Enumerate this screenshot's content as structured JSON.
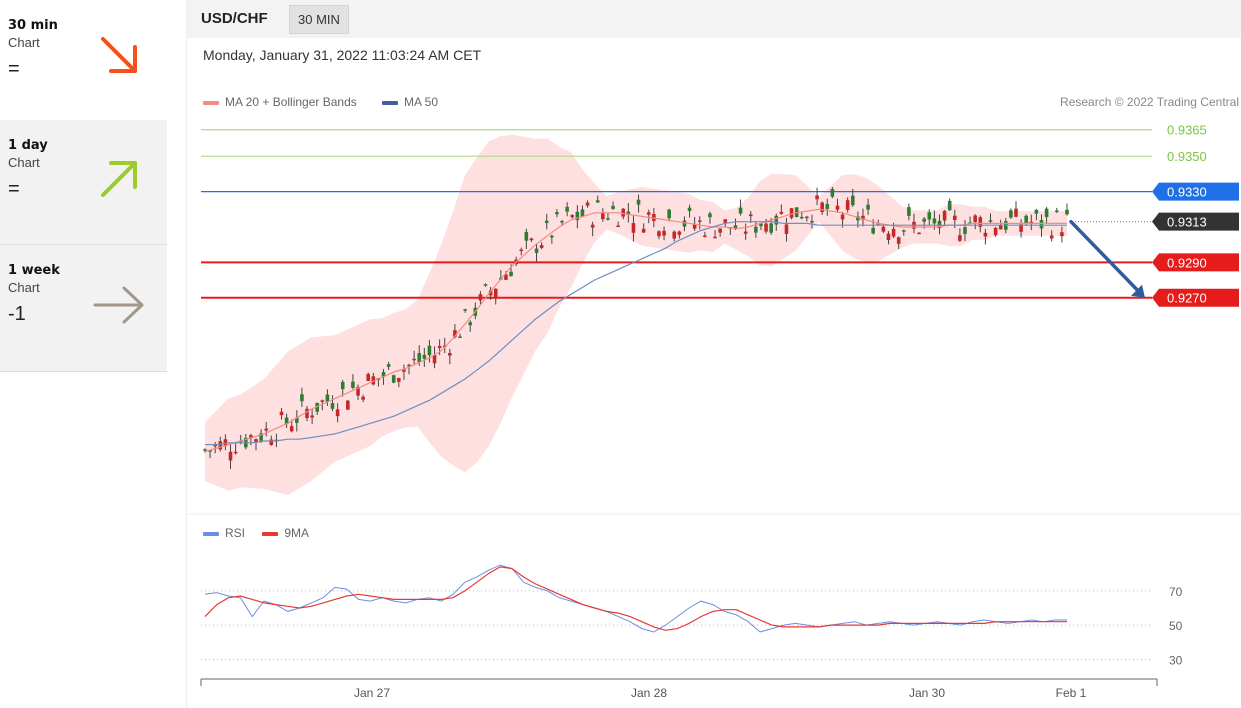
{
  "sidebar": {
    "items": [
      {
        "label": "30 min",
        "sub": "Chart",
        "value": "=",
        "icon": "arrow-down-right-icon",
        "color": "#f4511e"
      },
      {
        "label": "1 day",
        "sub": "Chart",
        "value": "=",
        "icon": "arrow-up-right-icon",
        "color": "#9ccc2a"
      },
      {
        "label": "1 week",
        "sub": "Chart",
        "value": "-1",
        "icon": "arrow-right-icon",
        "color": "#a1978b"
      }
    ]
  },
  "header": {
    "symbol": "USD/CHF",
    "interval": "30 MIN"
  },
  "datetime": "Monday, January 31, 2022 11:03:24 AM CET",
  "legend": {
    "ma20": "MA 20 + Bollinger Bands",
    "ma50": "MA 50",
    "ma20_color": "#f28b82",
    "ma50_color": "#3f5f9e"
  },
  "credit": "Research © 2022 Trading Central",
  "rsi_legend": {
    "rsi": "RSI",
    "ma9": "9MA",
    "rsi_color": "#6b8fe0",
    "ma9_color": "#e53935"
  },
  "chart_data": {
    "type": "line",
    "x_ticks": [
      "Jan 27",
      "Jan 28",
      "Jan 30",
      "Feb 1"
    ],
    "price_levels": [
      {
        "label": "0.9365",
        "value": 0.9365,
        "kind": "target",
        "color": "#7cc544"
      },
      {
        "label": "0.9350",
        "value": 0.935,
        "kind": "target",
        "color": "#7cc544"
      },
      {
        "label": "0.9330",
        "value": 0.933,
        "kind": "resistance",
        "color": "#1f6fe6"
      },
      {
        "label": "0.9313",
        "value": 0.9313,
        "kind": "last",
        "color": "#333333"
      },
      {
        "label": "0.9290",
        "value": 0.929,
        "kind": "support",
        "color": "#e61b1b"
      },
      {
        "label": "0.9270",
        "value": 0.927,
        "kind": "support",
        "color": "#e61b1b"
      }
    ],
    "series": [
      {
        "name": "MA 20 + Bollinger Bands",
        "values": [
          0.9183,
          0.9185,
          0.9187,
          0.9189,
          0.9191,
          0.9193,
          0.9196,
          0.9199,
          0.9203,
          0.9207,
          0.921,
          0.9213,
          0.9216,
          0.9219,
          0.9222,
          0.9225,
          0.9228,
          0.923,
          0.9233,
          0.9236,
          0.924,
          0.9247,
          0.9255,
          0.9263,
          0.9272,
          0.928,
          0.9288,
          0.9294,
          0.93,
          0.9305,
          0.931,
          0.9314,
          0.9316,
          0.9318,
          0.9318,
          0.9318,
          0.9317,
          0.9316,
          0.9315,
          0.9314,
          0.9313,
          0.9312,
          0.9311,
          0.931,
          0.931,
          0.9309,
          0.931,
          0.9312,
          0.9314,
          0.9316,
          0.9318,
          0.9319,
          0.932,
          0.9319,
          0.9318,
          0.9316,
          0.9314,
          0.9312,
          0.9311,
          0.931,
          0.931,
          0.931,
          0.931,
          0.9311,
          0.9311,
          0.9312,
          0.9312,
          0.9312,
          0.9312,
          0.9312,
          0.9312,
          0.9312,
          0.9312,
          0.9312
        ]
      },
      {
        "name": "MA 50",
        "values": [
          0.9187,
          0.9187,
          0.9188,
          0.9188,
          0.9188,
          0.9189,
          0.9189,
          0.919,
          0.919,
          0.9191,
          0.9192,
          0.9193,
          0.9195,
          0.9197,
          0.9199,
          0.9201,
          0.9203,
          0.9206,
          0.9209,
          0.9212,
          0.9216,
          0.922,
          0.9224,
          0.9229,
          0.9234,
          0.924,
          0.9246,
          0.9252,
          0.9258,
          0.9263,
          0.9268,
          0.9272,
          0.9276,
          0.928,
          0.9283,
          0.9286,
          0.9289,
          0.9292,
          0.9295,
          0.9298,
          0.9302,
          0.9305,
          0.9308,
          0.931,
          0.9312,
          0.9313,
          0.9313,
          0.9313,
          0.9313,
          0.9312,
          0.9312,
          0.9312,
          0.9311,
          0.9311,
          0.9311,
          0.9311,
          0.9311,
          0.9311,
          0.9311,
          0.9311,
          0.9311,
          0.9311,
          0.9311,
          0.9311,
          0.9311,
          0.9311,
          0.9311,
          0.9311,
          0.9311,
          0.9311,
          0.9311,
          0.9311,
          0.9311,
          0.9311
        ]
      },
      {
        "name": "RSI",
        "values": [
          68,
          69,
          67,
          66,
          55,
          64,
          62,
          58,
          60,
          63,
          66,
          72,
          71,
          65,
          64,
          66,
          64,
          63,
          65,
          66,
          64,
          68,
          75,
          78,
          82,
          85,
          83,
          75,
          72,
          70,
          66,
          64,
          62,
          60,
          58,
          55,
          52,
          48,
          46,
          50,
          55,
          60,
          64,
          62,
          58,
          56,
          52,
          46,
          48,
          50,
          51,
          50,
          49,
          50,
          51,
          52,
          50,
          51,
          52,
          51,
          50,
          51,
          52,
          51,
          50,
          52,
          53,
          52,
          51,
          52,
          53,
          52,
          53,
          53
        ]
      },
      {
        "name": "9MA",
        "values": [
          55,
          62,
          66,
          67,
          65,
          63,
          62,
          61,
          60,
          61,
          63,
          65,
          67,
          68,
          67,
          66,
          65,
          65,
          65,
          65,
          65,
          66,
          70,
          75,
          80,
          84,
          83,
          78,
          74,
          71,
          68,
          65,
          62,
          60,
          58,
          57,
          55,
          52,
          49,
          47,
          48,
          51,
          55,
          58,
          59,
          59,
          56,
          53,
          50,
          49,
          49,
          49,
          49,
          50,
          50,
          50,
          50,
          50,
          51,
          51,
          51,
          51,
          51,
          51,
          51,
          51,
          51,
          52,
          52,
          52,
          52,
          52,
          52,
          52
        ]
      }
    ],
    "price_ylim": [
      0.915,
      0.9375
    ],
    "rsi_ticks": [
      "70",
      "50",
      "30"
    ],
    "rsi_ylim": [
      25,
      88
    ],
    "forecast": {
      "from": 0.9313,
      "to": 0.927,
      "color": "#2f5c9e"
    }
  }
}
